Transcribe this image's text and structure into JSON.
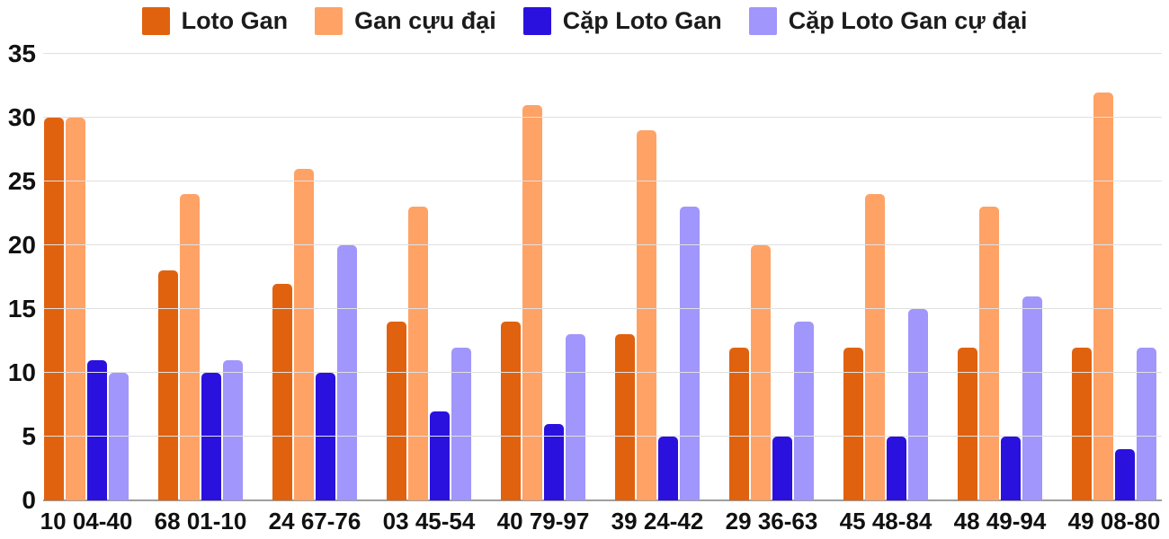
{
  "chart_data": {
    "type": "bar",
    "title": "",
    "xlabel": "",
    "ylabel": "",
    "categories": [
      "10 04-40",
      "68 01-10",
      "24 67-76",
      "03 45-54",
      "40 79-97",
      "39 24-42",
      "29 36-63",
      "45 48-84",
      "48 49-94",
      "49 08-80"
    ],
    "series": [
      {
        "name": "Loto Gan",
        "color": "#e0620f",
        "values": [
          30,
          18,
          17,
          14,
          14,
          13,
          12,
          12,
          12,
          12
        ]
      },
      {
        "name": "Gan cựu đại",
        "color": "#ffa266",
        "values": [
          30,
          24,
          26,
          23,
          31,
          29,
          20,
          24,
          23,
          32
        ]
      },
      {
        "name": "Cặp Loto Gan",
        "color": "#2b11de",
        "values": [
          11,
          10,
          10,
          7,
          6,
          5,
          5,
          5,
          5,
          4
        ]
      },
      {
        "name": "Cặp Loto Gan cự đại",
        "color": "#a196fb",
        "values": [
          10,
          11,
          20,
          12,
          13,
          23,
          14,
          15,
          16,
          12
        ]
      }
    ],
    "ylim": [
      0,
      35
    ],
    "ytick_step": 5,
    "yticks": [
      0,
      5,
      10,
      15,
      20,
      25,
      30,
      35
    ],
    "grid": true,
    "legend_position": "top"
  },
  "colors": {
    "background": "#ffffff",
    "gridline": "#e0e0e0",
    "axis_line": "#9e9e9e",
    "text": "#111111"
  }
}
